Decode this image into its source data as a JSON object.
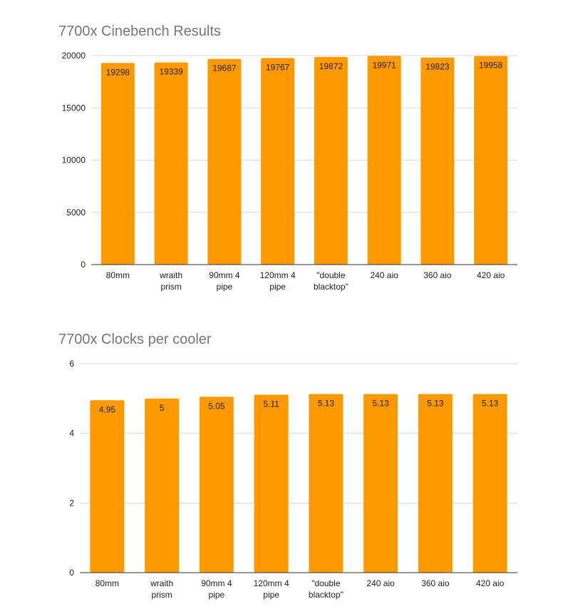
{
  "colors": {
    "bar": "#ff9900",
    "grid": "#d9d9d9",
    "title": "#757575",
    "text": "#222222"
  },
  "chart_data": [
    {
      "type": "bar",
      "title": "7700x Cinebench Results",
      "categories": [
        [
          "80mm"
        ],
        [
          "wraith",
          "prism"
        ],
        [
          "90mm 4",
          "pipe"
        ],
        [
          "120mm 4",
          "pipe"
        ],
        [
          "\"double",
          "blacktop\""
        ],
        [
          "240 aio"
        ],
        [
          "360 aio"
        ],
        [
          "420 aio"
        ]
      ],
      "values": [
        19298,
        19339,
        19687,
        19767,
        19872,
        19971,
        19823,
        19958
      ],
      "data_labels": [
        "19298",
        "19339",
        "19687",
        "19767",
        "19872",
        "19971",
        "19823",
        "19958"
      ],
      "yticks": [
        "0",
        "5000",
        "10000",
        "15000",
        "20000"
      ],
      "ylim": [
        0,
        20000
      ],
      "xlabel": "",
      "ylabel": "",
      "grid": true,
      "legend": "none"
    },
    {
      "type": "bar",
      "title": "7700x Clocks per cooler",
      "categories": [
        [
          "80mm"
        ],
        [
          "wraith",
          "prism"
        ],
        [
          "90mm 4",
          "pipe"
        ],
        [
          "120mm 4",
          "pipe"
        ],
        [
          "\"double",
          "blacktop\""
        ],
        [
          "240 aio"
        ],
        [
          "360 aio"
        ],
        [
          "420 aio"
        ]
      ],
      "values": [
        4.95,
        5,
        5.05,
        5.11,
        5.13,
        5.13,
        5.13,
        5.13
      ],
      "data_labels": [
        "4.95",
        "5",
        "5.05",
        "5.11",
        "5.13",
        "5.13",
        "5.13",
        "5.13"
      ],
      "yticks": [
        "0",
        "2",
        "4",
        "6"
      ],
      "ylim": [
        0,
        6
      ],
      "xlabel": "",
      "ylabel": "",
      "grid": true,
      "legend": "none"
    }
  ]
}
